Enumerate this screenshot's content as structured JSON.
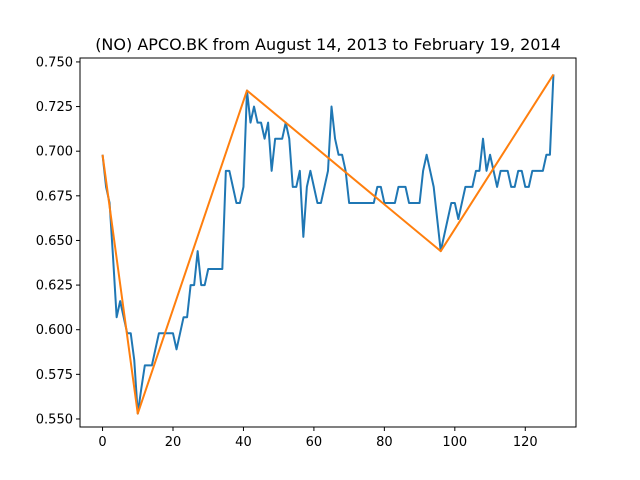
{
  "chart_data": {
    "type": "line",
    "title": "(NO) APCO.BK from August 14, 2013 to February 19, 2014",
    "xlabel": "",
    "ylabel": "",
    "xlim": [
      -6.4,
      134.4
    ],
    "ylim": [
      0.5455,
      0.7522
    ],
    "grid": false,
    "x_ticks": [
      0,
      20,
      40,
      60,
      80,
      100,
      120
    ],
    "y_ticks": [
      0.55,
      0.575,
      0.6,
      0.625,
      0.65,
      0.675,
      0.7,
      0.725,
      0.75
    ],
    "series": [
      {
        "color": "#1f77b4",
        "x": [
          0,
          1,
          2,
          3,
          4,
          5,
          6,
          7,
          8,
          9,
          10,
          11,
          12,
          13,
          14,
          15,
          16,
          17,
          18,
          19,
          20,
          21,
          22,
          23,
          24,
          25,
          26,
          27,
          28,
          29,
          30,
          31,
          32,
          33,
          34,
          35,
          36,
          37,
          38,
          39,
          40,
          41,
          42,
          43,
          44,
          45,
          46,
          47,
          48,
          49,
          50,
          51,
          52,
          53,
          54,
          55,
          56,
          57,
          58,
          59,
          60,
          61,
          62,
          63,
          64,
          65,
          66,
          67,
          68,
          69,
          70,
          71,
          72,
          73,
          74,
          75,
          76,
          77,
          78,
          79,
          80,
          81,
          82,
          83,
          84,
          85,
          86,
          87,
          88,
          89,
          90,
          91,
          92,
          93,
          94,
          95,
          96,
          97,
          98,
          99,
          100,
          101,
          102,
          103,
          104,
          105,
          106,
          107,
          108,
          109,
          110,
          111,
          112,
          113,
          114,
          115,
          116,
          117,
          118,
          119,
          120,
          121,
          122,
          123,
          124,
          125,
          126,
          127,
          128
        ],
        "y": [
          0.698,
          0.68,
          0.671,
          0.64,
          0.607,
          0.616,
          0.607,
          0.598,
          0.598,
          0.583,
          0.553,
          0.567,
          0.58,
          0.58,
          0.58,
          0.589,
          0.598,
          0.598,
          0.598,
          0.598,
          0.598,
          0.589,
          0.598,
          0.607,
          0.607,
          0.625,
          0.625,
          0.644,
          0.625,
          0.625,
          0.634,
          0.634,
          0.634,
          0.634,
          0.634,
          0.689,
          0.689,
          0.68,
          0.671,
          0.671,
          0.68,
          0.734,
          0.716,
          0.725,
          0.716,
          0.716,
          0.707,
          0.716,
          0.689,
          0.707,
          0.707,
          0.707,
          0.716,
          0.707,
          0.68,
          0.68,
          0.689,
          0.652,
          0.68,
          0.689,
          0.68,
          0.671,
          0.671,
          0.68,
          0.689,
          0.725,
          0.707,
          0.698,
          0.698,
          0.689,
          0.671,
          0.671,
          0.671,
          0.671,
          0.671,
          0.671,
          0.671,
          0.671,
          0.68,
          0.68,
          0.671,
          0.671,
          0.671,
          0.671,
          0.68,
          0.68,
          0.68,
          0.671,
          0.671,
          0.671,
          0.671,
          0.689,
          0.698,
          0.689,
          0.68,
          0.662,
          0.644,
          0.653,
          0.662,
          0.671,
          0.671,
          0.662,
          0.671,
          0.68,
          0.68,
          0.68,
          0.689,
          0.689,
          0.707,
          0.689,
          0.698,
          0.689,
          0.68,
          0.689,
          0.689,
          0.689,
          0.68,
          0.68,
          0.689,
          0.689,
          0.68,
          0.68,
          0.689,
          0.689,
          0.689,
          0.689,
          0.698,
          0.698,
          0.743
        ]
      },
      {
        "color": "#ff7f0e",
        "x": [
          0,
          10,
          41,
          96,
          128
        ],
        "y": [
          0.698,
          0.553,
          0.734,
          0.644,
          0.743
        ]
      }
    ]
  }
}
